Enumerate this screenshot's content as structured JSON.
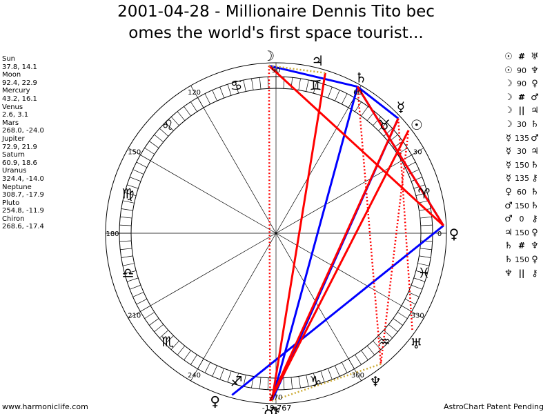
{
  "title_line1": "2001-04-28 - Millionaire Dennis Tito bec",
  "title_line2": "omes the world's first space tourist...",
  "positions": [
    {
      "name": "Sun",
      "value": "37.8, 14.1"
    },
    {
      "name": "Moon",
      "value": "92.4, 22.9"
    },
    {
      "name": "Mercury",
      "value": "43.2, 16.1"
    },
    {
      "name": "Venus",
      "value": "2.6, 3.1"
    },
    {
      "name": "Mars",
      "value": "268.0, -24.0"
    },
    {
      "name": "Jupiter",
      "value": "72.9, 21.9"
    },
    {
      "name": "Saturn",
      "value": "60.9, 18.6"
    },
    {
      "name": "Uranus",
      "value": "324.4, -14.0"
    },
    {
      "name": "Neptune",
      "value": "308.7, -17.9"
    },
    {
      "name": "Pluto",
      "value": "254.8, -11.9"
    },
    {
      "name": "Chiron",
      "value": "268.6, -17.4"
    }
  ],
  "aspects": [
    {
      "p1": "☉",
      "sym": "#",
      "deg": "",
      "p2": "♅"
    },
    {
      "p1": "☉",
      "sym": "",
      "deg": "90",
      "p2": "♆"
    },
    {
      "p1": "☽",
      "sym": "",
      "deg": "90",
      "p2": "♀"
    },
    {
      "p1": "☽",
      "sym": "#",
      "deg": "",
      "p2": "♂"
    },
    {
      "p1": "☽",
      "sym": "||",
      "deg": "",
      "p2": "♃"
    },
    {
      "p1": "☽",
      "sym": "",
      "deg": "30",
      "p2": "♄"
    },
    {
      "p1": "☿",
      "sym": "",
      "deg": "135",
      "p2": "♂"
    },
    {
      "p1": "☿",
      "sym": "",
      "deg": "30",
      "p2": "♃"
    },
    {
      "p1": "☿",
      "sym": "",
      "deg": "150",
      "p2": "♄"
    },
    {
      "p1": "☿",
      "sym": "",
      "deg": "135",
      "p2": "⚷"
    },
    {
      "p1": "♀",
      "sym": "",
      "deg": "60",
      "p2": "♄"
    },
    {
      "p1": "♂",
      "sym": "",
      "deg": "150",
      "p2": "♄"
    },
    {
      "p1": "♂",
      "sym": "",
      "deg": "0",
      "p2": "⚷"
    },
    {
      "p1": "♃",
      "sym": "",
      "deg": "150",
      "p2": "♀"
    },
    {
      "p1": "♄",
      "sym": "#",
      "deg": "",
      "p2": "♆"
    },
    {
      "p1": "♄",
      "sym": "",
      "deg": "150",
      "p2": "♀"
    },
    {
      "p1": "♆",
      "sym": "||",
      "deg": "",
      "p2": "⚷"
    }
  ],
  "wheel": {
    "degree_labels": [
      "0",
      "30",
      "60",
      "90",
      "120",
      "150",
      "180",
      "210",
      "240",
      "270",
      "300",
      "330"
    ],
    "zodiac": [
      "♈",
      "♉",
      "♊",
      "♋",
      "♌",
      "♍",
      "♎",
      "♏",
      "♐",
      "♑",
      "♒",
      "♓"
    ],
    "planets": [
      {
        "glyph": "☉",
        "lon": 37.8,
        "label_lon": 37.8
      },
      {
        "glyph": "☽",
        "lon": 92.4,
        "label_lon": 92.4
      },
      {
        "glyph": "☿",
        "lon": 43.2,
        "label_lon": 45.5
      },
      {
        "glyph": "♀",
        "lon": 2.6,
        "label_lon": 0
      },
      {
        "glyph": "♂",
        "lon": 268.0,
        "label_lon": 268.0
      },
      {
        "glyph": "♃",
        "lon": 72.9,
        "label_lon": 76.5
      },
      {
        "glyph": "♄",
        "lon": 60.9,
        "label_lon": 61.5
      },
      {
        "glyph": "♅",
        "lon": 324.4,
        "label_lon": 322.0
      },
      {
        "glyph": "♆",
        "lon": 308.7,
        "label_lon": 304.0
      },
      {
        "glyph": "♀",
        "lon": 254.8,
        "label_lon": 250.0
      },
      {
        "glyph": "⚷",
        "lon": 268.6,
        "label_lon": 270.0
      }
    ],
    "lines": [
      {
        "a": 1,
        "b": 6,
        "color": "#0000ff",
        "style": "solid"
      },
      {
        "a": 2,
        "b": 6,
        "color": "#0000ff",
        "style": "solid"
      },
      {
        "a": 3,
        "b": 6,
        "color": "#0000ff",
        "style": "solid"
      },
      {
        "a": 3,
        "b": 9,
        "color": "#0000ff",
        "style": "solid"
      },
      {
        "a": 6,
        "b": 10,
        "color": "#0000ff",
        "style": "solid"
      },
      {
        "a": 2,
        "b": 10,
        "color": "#0000ff",
        "style": "solid"
      },
      {
        "a": 0,
        "b": 4,
        "color": "#ff0000",
        "style": "solid"
      },
      {
        "a": 1,
        "b": 3,
        "color": "#ff0000",
        "style": "solid"
      },
      {
        "a": 2,
        "b": 4,
        "color": "#ff0000",
        "style": "solid"
      },
      {
        "a": 5,
        "b": 10,
        "color": "#ff0000",
        "style": "solid"
      },
      {
        "a": 6,
        "b": 3,
        "color": "#ff0000",
        "style": "solid"
      },
      {
        "a": 0,
        "b": 8,
        "color": "#ff0000",
        "style": "dotted"
      },
      {
        "a": 1,
        "b": 4,
        "color": "#ff0000",
        "style": "dotted"
      },
      {
        "a": 6,
        "b": 8,
        "color": "#ff0000",
        "style": "dotted"
      },
      {
        "a": 2,
        "b": 7,
        "color": "#ff0000",
        "style": "dotted"
      },
      {
        "a": 1,
        "b": 5,
        "color": "#ccaa33",
        "style": "dotted"
      },
      {
        "a": 8,
        "b": 10,
        "color": "#ccaa33",
        "style": "dotted"
      }
    ],
    "bottom_label": "-19.767"
  },
  "footer_left": "www.harmoniclife.com",
  "footer_right": "AstroChart Patent Pending",
  "colors": {
    "blue": "#0000ff",
    "red": "#ff0000",
    "gold": "#ccaa33"
  }
}
